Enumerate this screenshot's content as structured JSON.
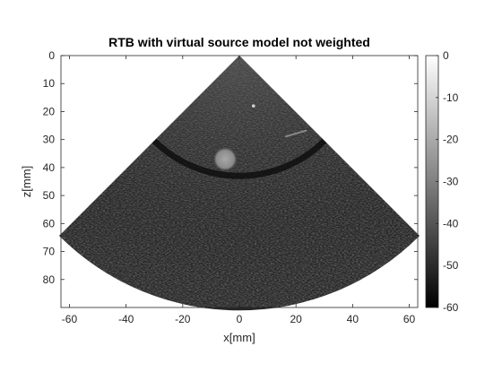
{
  "chart_data": {
    "type": "heatmap",
    "title": "RTB with virtual source model not weighted",
    "xlabel": "x[mm]",
    "ylabel": "z[mm]",
    "xlim": [
      -63,
      63
    ],
    "ylim": [
      0,
      90
    ],
    "y_direction": "reversed",
    "xticks": [
      -60,
      -40,
      -20,
      0,
      20,
      40,
      60
    ],
    "yticks": [
      0,
      10,
      20,
      30,
      40,
      50,
      60,
      70,
      80
    ],
    "sector": {
      "apex": [
        0,
        0
      ],
      "half_angle_deg": 45,
      "max_depth_mm": 90
    },
    "features": [
      {
        "kind": "bright-cyst",
        "x": -5,
        "z": 37,
        "radius": 4
      },
      {
        "kind": "hyperechoic-band",
        "z_center": 43,
        "curved": true
      },
      {
        "kind": "bright-streak",
        "x": 20,
        "z": 28
      },
      {
        "kind": "point",
        "x": 5,
        "z": 18
      }
    ],
    "colorbar": {
      "colormap": "gray",
      "range": [
        -60,
        0
      ],
      "ticks": [
        0,
        -10,
        -20,
        -30,
        -40,
        -50,
        -60
      ]
    }
  }
}
